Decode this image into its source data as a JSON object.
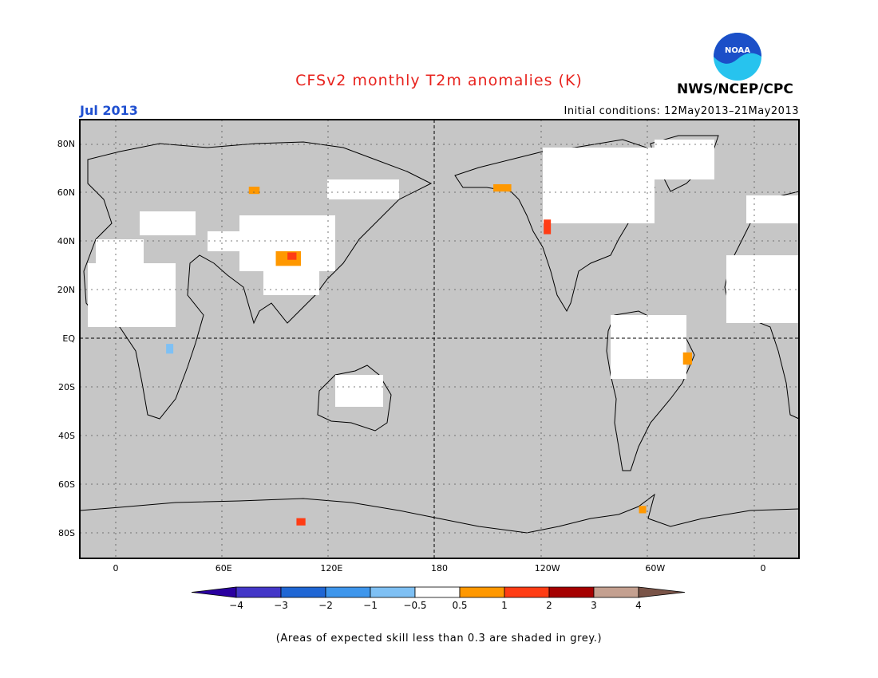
{
  "header": {
    "title": "CFSv2 monthly T2m anomalies (K)",
    "month": "Jul 2013",
    "initial_conditions": "Initial conditions: 12May2013–21May2013",
    "organization": "NWS/NCEP/CPC",
    "logo_text": "NOAA"
  },
  "colors": {
    "title": "#e8231e",
    "month": "#2050d0",
    "land_grey": "#c6c6c6",
    "ocean": "#ffffff",
    "noaa_blue": "#1b4fc8",
    "noaa_cyan": "#27c3ee"
  },
  "map": {
    "lat_labels": [
      "80N",
      "60N",
      "40N",
      "20N",
      "EQ",
      "20S",
      "40S",
      "60S",
      "80S"
    ],
    "lon_labels": [
      "0",
      "60E",
      "120E",
      "180",
      "120W",
      "60W",
      "0"
    ],
    "lat_extent": [
      -90,
      90
    ],
    "lon_extent": [
      -20,
      380
    ],
    "anomaly_regions": [
      {
        "name": "mongolia-china",
        "lon": 96,
        "lat": 33,
        "w": 14,
        "h": 6,
        "level": "0.5-1"
      },
      {
        "name": "tibet-hotspot",
        "lon": 98,
        "lat": 34,
        "w": 5,
        "h": 3,
        "level": "1-2"
      },
      {
        "name": "siberia-north",
        "lon": 77,
        "lat": 61,
        "w": 6,
        "h": 3,
        "level": "0.5-1"
      },
      {
        "name": "alaska",
        "lon": 215,
        "lat": 62,
        "w": 10,
        "h": 3,
        "level": "0.5-1"
      },
      {
        "name": "western-us",
        "lon": 240,
        "lat": 46,
        "w": 4,
        "h": 6,
        "level": "1-2"
      },
      {
        "name": "eastern-brazil",
        "lon": 318,
        "lat": -8,
        "w": 5,
        "h": 5,
        "level": "0.5-1"
      },
      {
        "name": "east-antarctica",
        "lon": 103,
        "lat": -75,
        "w": 5,
        "h": 3,
        "level": "1-2"
      },
      {
        "name": "antarctic-peninsula",
        "lon": 293,
        "lat": -70,
        "w": 4,
        "h": 3,
        "level": "0.5-1"
      },
      {
        "name": "east-africa-cool",
        "lon": 30,
        "lat": -4,
        "w": 4,
        "h": 4,
        "level": "-1--0.5"
      }
    ]
  },
  "colorbar": {
    "labels": [
      "−4",
      "−3",
      "−2",
      "−1",
      "−0.5",
      "0.5",
      "1",
      "2",
      "3",
      "4"
    ],
    "colors": [
      "#2a00a0",
      "#4336c8",
      "#1f66d4",
      "#3e96ec",
      "#7ec0f4",
      "#ffffff",
      "#ff9800",
      "#ff3c14",
      "#a50000",
      "#c4a090",
      "#7a5448"
    ]
  },
  "footnote": "(Areas of expected skill less than 0.3 are shaded in grey.)"
}
